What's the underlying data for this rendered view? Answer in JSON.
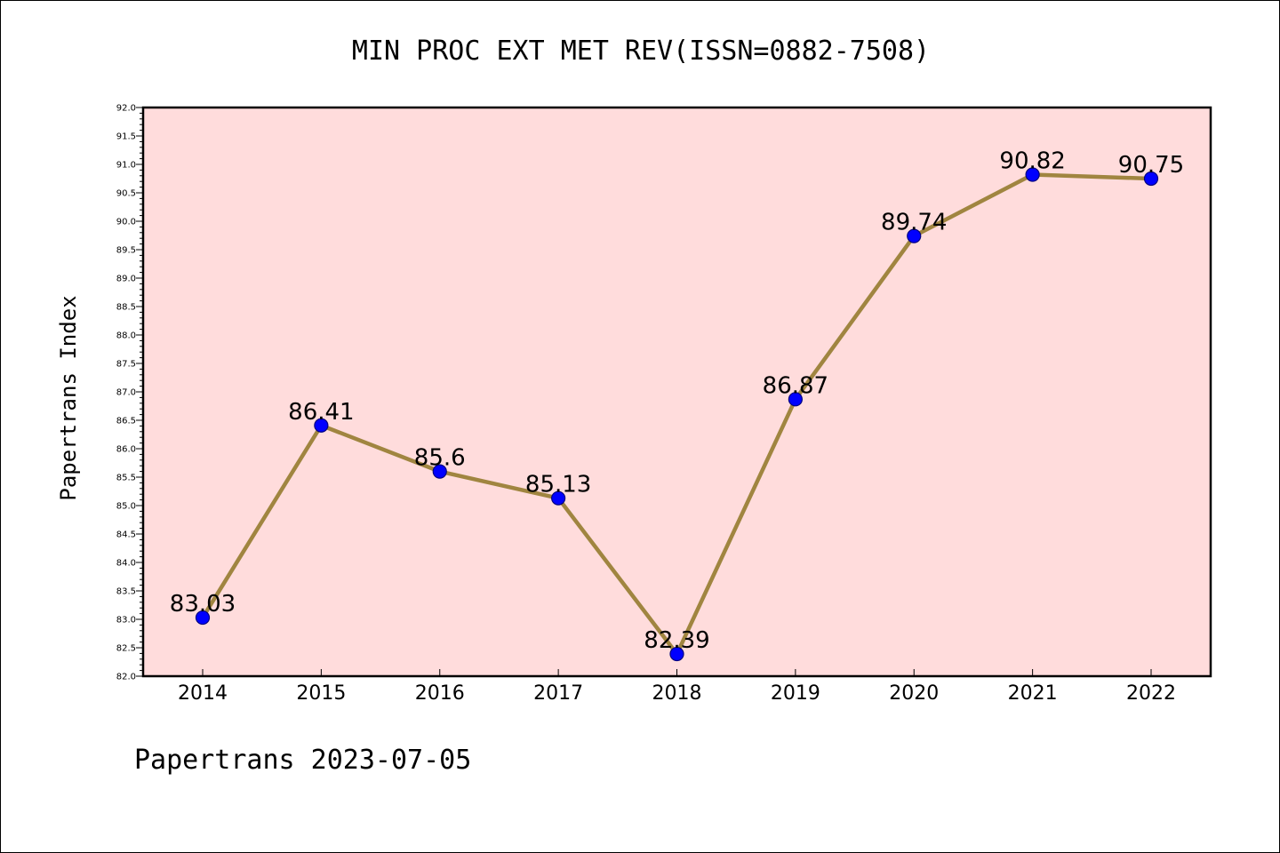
{
  "chart_data": {
    "type": "line",
    "title": "MIN PROC EXT MET REV(ISSN=0882-7508)",
    "xlabel": "",
    "ylabel": "Papertrans Index",
    "footer": "Papertrans 2023-07-05",
    "categories": [
      "2014",
      "2015",
      "2016",
      "2017",
      "2018",
      "2019",
      "2020",
      "2021",
      "2022"
    ],
    "series": [
      {
        "values": [
          83.03,
          86.41,
          85.6,
          85.13,
          82.39,
          86.87,
          89.74,
          90.82,
          90.75
        ],
        "labels": [
          "83.03",
          "86.41",
          "85.6",
          "85.13",
          "82.39",
          "86.87",
          "89.74",
          "90.82",
          "90.75"
        ]
      }
    ],
    "ylim": [
      82.0,
      92.0
    ],
    "yticks": [
      "82.0",
      "82.5",
      "83.0",
      "83.5",
      "84.0",
      "84.5",
      "85.0",
      "85.5",
      "86.0",
      "86.5",
      "87.0",
      "87.5",
      "88.0",
      "88.5",
      "89.0",
      "89.5",
      "90.0",
      "90.5",
      "91.0",
      "91.5",
      "92.0"
    ],
    "grid": false,
    "colors": {
      "plot_background": "#ffdcdc",
      "line": "#a08540",
      "marker_fill": "#0000ff",
      "marker_edge": "#000080"
    }
  }
}
